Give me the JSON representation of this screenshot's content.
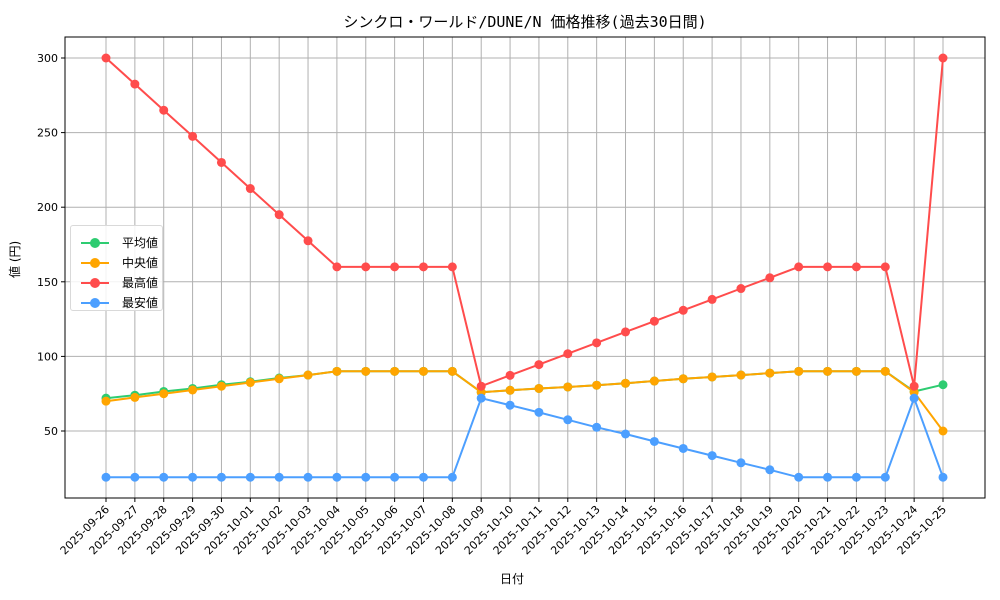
{
  "chart_data": {
    "type": "line",
    "title": "シンクロ・ワールド/DUNE/N 価格推移(過去30日間)",
    "xlabel": "日付",
    "ylabel": "値 (円)",
    "ylim": [
      12,
      314
    ],
    "yticks": [
      50,
      100,
      150,
      200,
      250,
      300
    ],
    "grid": true,
    "legend_position": "center left",
    "categories": [
      "2025-09-26",
      "2025-09-27",
      "2025-09-28",
      "2025-09-29",
      "2025-09-30",
      "2025-10-01",
      "2025-10-02",
      "2025-10-03",
      "2025-10-04",
      "2025-10-05",
      "2025-10-06",
      "2025-10-07",
      "2025-10-08",
      "2025-10-09",
      "2025-10-10",
      "2025-10-11",
      "2025-10-12",
      "2025-10-13",
      "2025-10-14",
      "2025-10-15",
      "2025-10-16",
      "2025-10-17",
      "2025-10-18",
      "2025-10-19",
      "2025-10-20",
      "2025-10-21",
      "2025-10-22",
      "2025-10-23",
      "2025-10-24",
      "2025-10-25"
    ],
    "series": [
      {
        "name": "平均値",
        "color": "#2ecc71",
        "values": [
          72,
          74,
          76.5,
          78.5,
          81,
          83,
          85.5,
          87.5,
          90,
          90,
          90,
          90,
          90,
          76,
          77.3,
          78.5,
          79.5,
          80.7,
          82,
          83.5,
          85,
          86.2,
          87.5,
          88.8,
          90,
          90,
          90,
          90,
          76.5,
          81
        ]
      },
      {
        "name": "中央値",
        "color": "#ffa500",
        "values": [
          70,
          72.5,
          75,
          77.5,
          80,
          82.5,
          85,
          87.5,
          90,
          90,
          90,
          90,
          90,
          76,
          77.3,
          78.5,
          79.5,
          80.7,
          82,
          83.5,
          85,
          86.2,
          87.5,
          88.8,
          90,
          90,
          90,
          90,
          76,
          50
        ]
      },
      {
        "name": "最高値",
        "color": "#ff4c4c",
        "values": [
          300,
          282.5,
          265,
          247.5,
          230,
          212.5,
          195,
          177.5,
          160,
          160,
          160,
          160,
          160,
          80,
          87.3,
          94.5,
          101.8,
          109.1,
          116.4,
          123.6,
          130.9,
          138.2,
          145.5,
          152.7,
          160,
          160,
          160,
          160,
          80,
          300
        ]
      },
      {
        "name": "最安値",
        "color": "#4c9fff",
        "values": [
          19,
          19,
          19,
          19,
          19,
          19,
          19,
          19,
          19,
          19,
          19,
          19,
          19,
          72,
          67.3,
          62.5,
          57.5,
          52.5,
          48,
          43,
          38.3,
          33.5,
          28.7,
          24,
          19,
          19,
          19,
          19,
          72,
          19
        ]
      }
    ]
  }
}
